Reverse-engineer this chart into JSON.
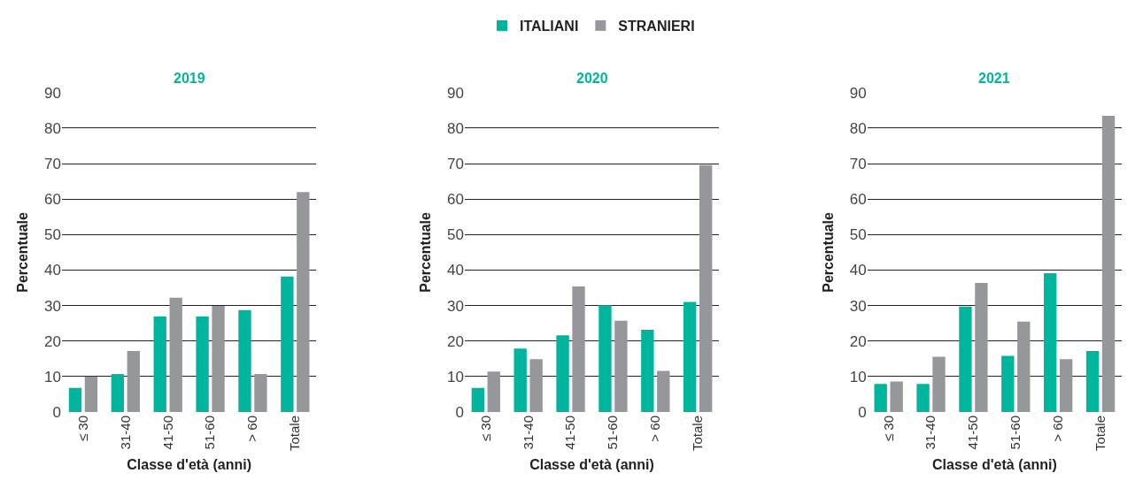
{
  "chart_data": [
    {
      "type": "bar",
      "title": "2019",
      "xlabel": "Classe d'età (anni)",
      "ylabel": "Percentuale",
      "categories": [
        "≤ 30",
        "31-40",
        "41-50",
        "51-60",
        "> 60",
        "Totale"
      ],
      "series": [
        {
          "name": "ITALIANI",
          "color": "#00b59e",
          "values": [
            6.8,
            10.7,
            26.9,
            26.9,
            28.7,
            38.2
          ]
        },
        {
          "name": "STRANIERI",
          "color": "#96979b",
          "values": [
            10,
            17.2,
            32.2,
            29.9,
            10.7,
            62
          ]
        }
      ],
      "ylim": [
        0,
        90
      ],
      "yticks": [
        0,
        10,
        20,
        30,
        40,
        50,
        60,
        70,
        80,
        90
      ],
      "grid": "y",
      "legend": "top"
    },
    {
      "type": "bar",
      "title": "2020",
      "xlabel": "Classe d'età (anni)",
      "ylabel": "Percentuale",
      "categories": [
        "≤ 30",
        "31-40",
        "41-50",
        "51-60",
        "> 60",
        "Totale"
      ],
      "series": [
        {
          "name": "ITALIANI",
          "color": "#00b59e",
          "values": [
            6.8,
            17.9,
            21.6,
            30.1,
            23.2,
            31
          ]
        },
        {
          "name": "STRANIERI",
          "color": "#96979b",
          "values": [
            11.4,
            14.9,
            35.4,
            25.7,
            11.6,
            69.6
          ]
        }
      ],
      "ylim": [
        0,
        90
      ],
      "yticks": [
        0,
        10,
        20,
        30,
        40,
        50,
        60,
        70,
        80,
        90
      ],
      "grid": "y",
      "legend": "top"
    },
    {
      "type": "bar",
      "title": "2021",
      "xlabel": "Classe d'età (anni)",
      "ylabel": "Percentuale",
      "categories": [
        "≤ 30",
        "31-40",
        "41-50",
        "51-60",
        "> 60",
        "Totale"
      ],
      "series": [
        {
          "name": "ITALIANI",
          "color": "#00b59e",
          "values": [
            7.9,
            7.9,
            29.7,
            15.8,
            39.1,
            17.2
          ]
        },
        {
          "name": "STRANIERI",
          "color": "#96979b",
          "values": [
            8.6,
            15.6,
            36.4,
            25.5,
            14.9,
            83.5
          ]
        }
      ],
      "ylim": [
        0,
        90
      ],
      "yticks": [
        0,
        10,
        20,
        30,
        40,
        50,
        60,
        70,
        80,
        90
      ],
      "grid": "y",
      "legend": "top"
    }
  ]
}
